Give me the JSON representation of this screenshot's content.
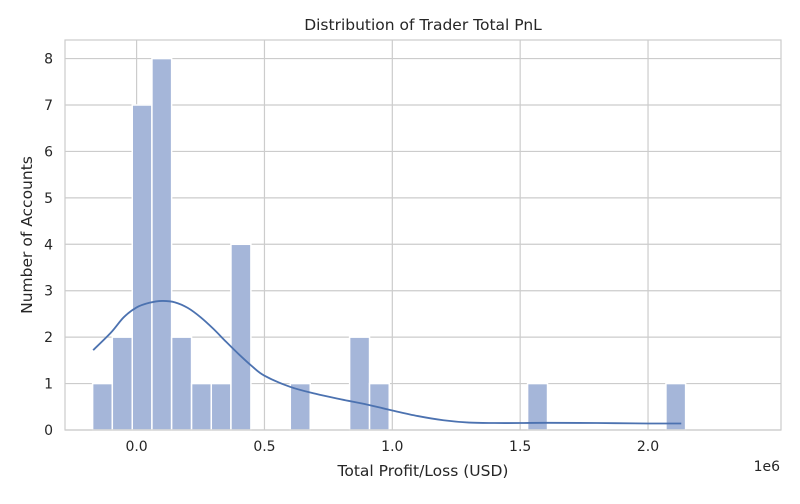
{
  "chart_data": {
    "type": "bar",
    "title": "Distribution of Trader Total PnL",
    "xlabel": "Total Profit/Loss (USD)",
    "ylabel": "Number of Accounts",
    "x_offset_label": "1e6",
    "xlim": [
      -0.28,
      2.52
    ],
    "ylim": [
      0,
      8.4
    ],
    "x_ticks": [
      0.0,
      0.5,
      1.0,
      1.5,
      2.0
    ],
    "x_tick_labels": [
      "0.0",
      "0.5",
      "1.0",
      "1.5",
      "2.0"
    ],
    "y_ticks": [
      0,
      1,
      2,
      3,
      4,
      5,
      6,
      7,
      8
    ],
    "y_tick_labels": [
      "0",
      "1",
      "2",
      "3",
      "4",
      "5",
      "6",
      "7",
      "8"
    ],
    "grid": true,
    "bar_color": "#a5b6d9",
    "kde_color": "#4c72b0",
    "bins": [
      {
        "x0": -0.172,
        "x1": -0.095,
        "count": 1
      },
      {
        "x0": -0.095,
        "x1": -0.017,
        "count": 2
      },
      {
        "x0": -0.017,
        "x1": 0.06,
        "count": 7
      },
      {
        "x0": 0.06,
        "x1": 0.137,
        "count": 8
      },
      {
        "x0": 0.137,
        "x1": 0.215,
        "count": 2
      },
      {
        "x0": 0.215,
        "x1": 0.292,
        "count": 1
      },
      {
        "x0": 0.292,
        "x1": 0.369,
        "count": 1
      },
      {
        "x0": 0.369,
        "x1": 0.447,
        "count": 4
      },
      {
        "x0": 0.601,
        "x1": 0.679,
        "count": 1
      },
      {
        "x0": 0.833,
        "x1": 0.911,
        "count": 2
      },
      {
        "x0": 0.911,
        "x1": 0.988,
        "count": 1
      },
      {
        "x0": 1.529,
        "x1": 1.607,
        "count": 1
      },
      {
        "x0": 2.07,
        "x1": 2.147,
        "count": 1
      }
    ],
    "kde": [
      {
        "x": -0.17,
        "y": 1.72
      },
      {
        "x": -0.1,
        "y": 2.1
      },
      {
        "x": -0.05,
        "y": 2.43
      },
      {
        "x": 0.0,
        "y": 2.64
      },
      {
        "x": 0.05,
        "y": 2.74
      },
      {
        "x": 0.1,
        "y": 2.78
      },
      {
        "x": 0.15,
        "y": 2.75
      },
      {
        "x": 0.2,
        "y": 2.63
      },
      {
        "x": 0.25,
        "y": 2.43
      },
      {
        "x": 0.3,
        "y": 2.18
      },
      {
        "x": 0.35,
        "y": 1.9
      },
      {
        "x": 0.4,
        "y": 1.63
      },
      {
        "x": 0.45,
        "y": 1.38
      },
      {
        "x": 0.5,
        "y": 1.17
      },
      {
        "x": 0.6,
        "y": 0.93
      },
      {
        "x": 0.7,
        "y": 0.78
      },
      {
        "x": 0.8,
        "y": 0.66
      },
      {
        "x": 0.9,
        "y": 0.55
      },
      {
        "x": 1.0,
        "y": 0.42
      },
      {
        "x": 1.1,
        "y": 0.3
      },
      {
        "x": 1.2,
        "y": 0.21
      },
      {
        "x": 1.3,
        "y": 0.16
      },
      {
        "x": 1.4,
        "y": 0.15
      },
      {
        "x": 1.5,
        "y": 0.15
      },
      {
        "x": 1.6,
        "y": 0.155
      },
      {
        "x": 1.8,
        "y": 0.15
      },
      {
        "x": 2.0,
        "y": 0.14
      },
      {
        "x": 2.13,
        "y": 0.14
      }
    ]
  }
}
